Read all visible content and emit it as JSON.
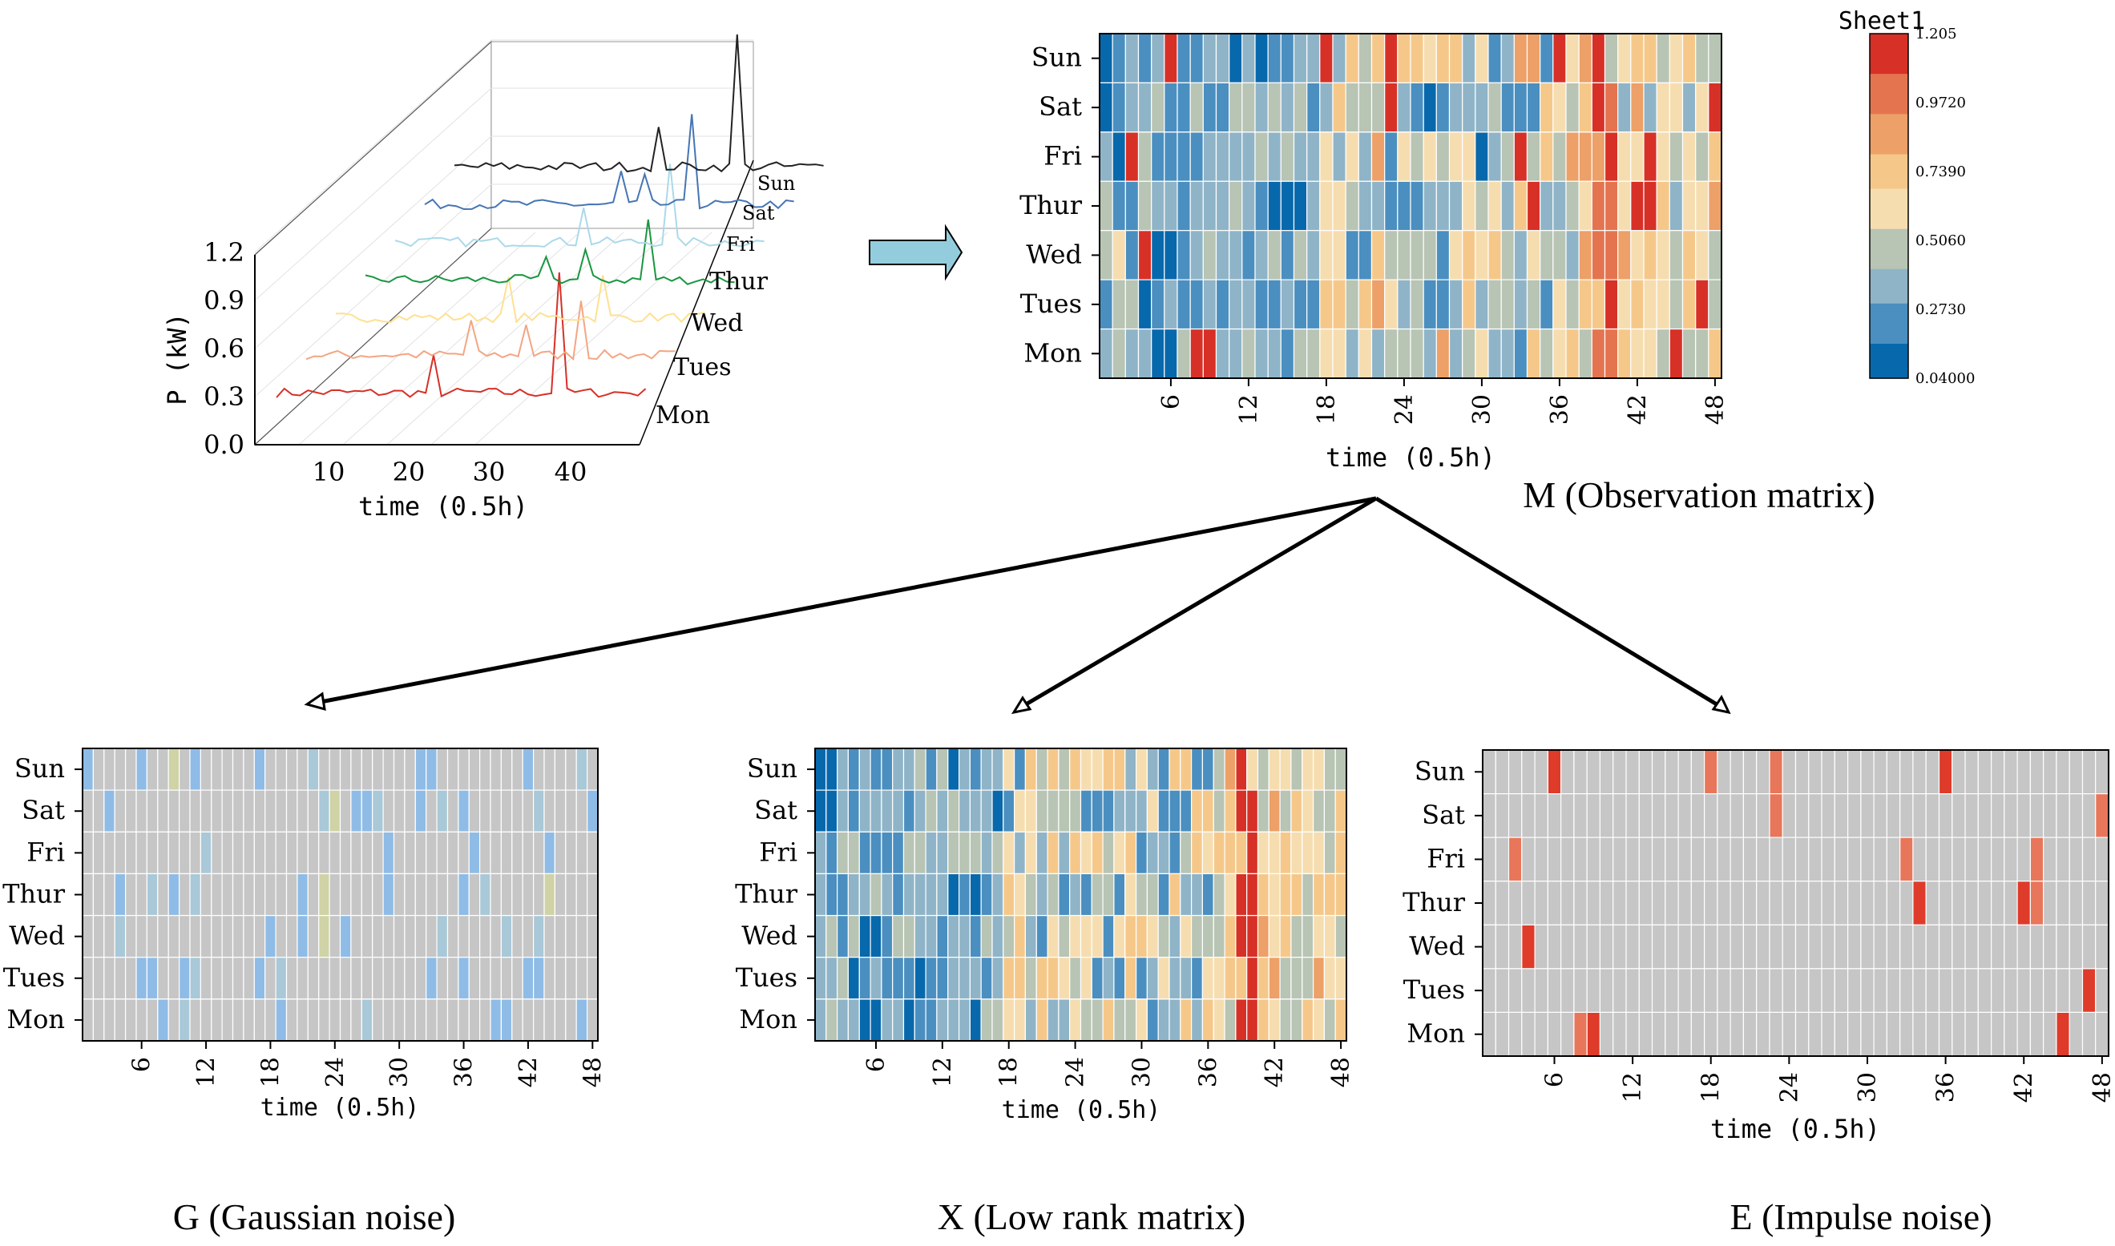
{
  "top_plot": {
    "ylabel": "P (kW)",
    "xlabel": "time (0.5h)",
    "yticks": [
      "0.0",
      "0.3",
      "0.6",
      "0.9",
      "1.2"
    ],
    "xticks": [
      "10",
      "20",
      "30",
      "40"
    ],
    "days": [
      "Mon",
      "Tues",
      "Wed",
      "Thur",
      "Fri",
      "Sat",
      "Sun"
    ],
    "line_colors": [
      "#d73027",
      "#f4a582",
      "#fee090",
      "#1a9641",
      "#abd9e9",
      "#4575b4",
      "#222222"
    ],
    "peak_values": [
      1.1,
      0.55,
      0.45,
      0.6,
      0.75,
      0.85,
      1.2
    ]
  },
  "observation": {
    "caption": "M (Observation matrix)",
    "xlabel": "time (0.5h)",
    "rows": [
      "Sun",
      "Sat",
      "Fri",
      "Thur",
      "Wed",
      "Tues",
      "Mon"
    ],
    "xticks": [
      "6",
      "12",
      "18",
      "24",
      "30",
      "36",
      "42",
      "48"
    ]
  },
  "colorbar": {
    "title": "Sheet1",
    "ticks": [
      "1.205",
      "0.9720",
      "0.7390",
      "0.5060",
      "0.2730",
      "0.04000"
    ],
    "min": 0.04,
    "max": 1.205,
    "colors": [
      "#0868ac",
      "#4a8fc0",
      "#8fb4c8",
      "#b8c4b4",
      "#f6ddb0",
      "#f5c88a",
      "#eda067",
      "#e4744f",
      "#d73027"
    ]
  },
  "gaussian": {
    "caption": "G (Gaussian noise)",
    "xlabel": "time (0.5h)",
    "rows": [
      "Sun",
      "Sat",
      "Fri",
      "Thur",
      "Wed",
      "Tues",
      "Mon"
    ],
    "xticks": [
      "6",
      "12",
      "18",
      "24",
      "30",
      "36",
      "42",
      "48"
    ]
  },
  "lowrank": {
    "caption": "X (Low rank matrix)",
    "xlabel": "time (0.5h)",
    "rows": [
      "Sun",
      "Sat",
      "Fri",
      "Thur",
      "Wed",
      "Tues",
      "Mon"
    ],
    "xticks": [
      "6",
      "12",
      "18",
      "24",
      "30",
      "36",
      "42",
      "48"
    ]
  },
  "impulse": {
    "caption": "E (Impulse noise)",
    "xlabel": "time (0.5h)",
    "rows": [
      "Sun",
      "Sat",
      "Fri",
      "Thur",
      "Wed",
      "Tues",
      "Mon"
    ],
    "xticks": [
      "6",
      "12",
      "18",
      "24",
      "30",
      "36",
      "42",
      "48"
    ],
    "spikes": [
      [
        6,
        18,
        23,
        36
      ],
      [
        23,
        48
      ],
      [
        3,
        33,
        43
      ],
      [
        34,
        42,
        43
      ],
      [
        4
      ],
      [
        47
      ],
      [
        8,
        9,
        45
      ]
    ]
  }
}
